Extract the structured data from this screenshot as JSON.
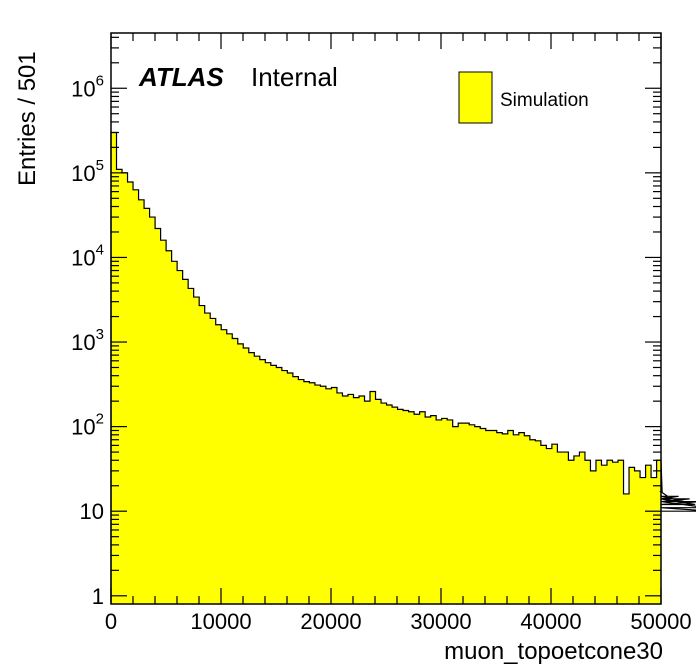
{
  "chart_data": {
    "type": "bar",
    "title": "",
    "xlabel": "muon_topoetcone30",
    "ylabel": "Entries / 501",
    "xlim": [
      0,
      50000
    ],
    "ylim": [
      0.8,
      4500000
    ],
    "yscale": "log",
    "bin_width": 501,
    "fill_color": "#ffff00",
    "line_color": "#000000",
    "grid": false,
    "legend_position": "top-right",
    "labels": {
      "atlas": "ATLAS",
      "status": "Internal"
    },
    "legend": [
      {
        "label": "Simulation",
        "color": "#ffff00"
      }
    ],
    "x_ticks": [
      {
        "value": 0,
        "label": "0"
      },
      {
        "value": 10000,
        "label": "10000"
      },
      {
        "value": 20000,
        "label": "20000"
      },
      {
        "value": 30000,
        "label": "30000"
      },
      {
        "value": 40000,
        "label": "40000"
      },
      {
        "value": 50000,
        "label": "50000"
      }
    ],
    "y_ticks": [
      {
        "value": 1,
        "base": "1",
        "exp": ""
      },
      {
        "value": 10,
        "base": "10",
        "exp": ""
      },
      {
        "value": 100,
        "base": "10",
        "exp": "2"
      },
      {
        "value": 1000,
        "base": "10",
        "exp": "3"
      },
      {
        "value": 10000,
        "base": "10",
        "exp": "4"
      },
      {
        "value": 100000,
        "base": "10",
        "exp": "5"
      },
      {
        "value": 1000000,
        "base": "10",
        "exp": "6"
      }
    ],
    "values": [
      300000,
      110000,
      100000,
      78000,
      63000,
      48000,
      38000,
      30000,
      22000,
      16000,
      12000,
      9000,
      7000,
      5500,
      4300,
      3400,
      2700,
      2200,
      1900,
      1600,
      1400,
      1250,
      1100,
      950,
      850,
      750,
      680,
      620,
      570,
      530,
      500,
      460,
      430,
      390,
      360,
      340,
      330,
      310,
      300,
      280,
      290,
      250,
      230,
      240,
      220,
      230,
      200,
      260,
      210,
      190,
      180,
      170,
      160,
      155,
      150,
      140,
      150,
      130,
      135,
      120,
      125,
      120,
      100,
      110,
      110,
      105,
      100,
      95,
      90,
      90,
      85,
      82,
      90,
      80,
      85,
      78,
      70,
      68,
      60,
      55,
      62,
      50,
      50,
      40,
      45,
      50,
      40,
      30,
      40,
      35,
      40,
      38,
      40,
      16,
      33,
      30,
      25,
      35,
      25,
      40,
      17,
      15,
      14,
      15,
      13,
      14,
      12,
      13,
      11,
      10
    ]
  }
}
